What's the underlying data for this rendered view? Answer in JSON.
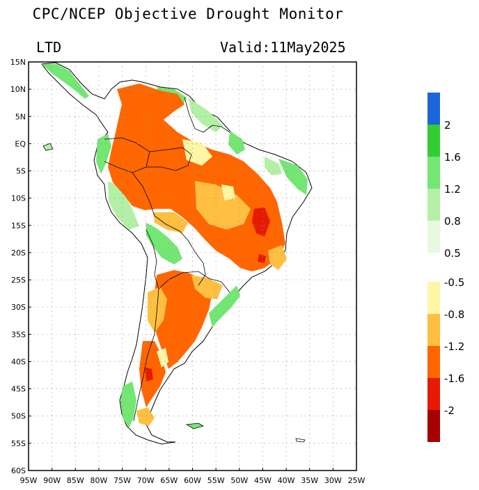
{
  "header": {
    "title": "CPC/NCEP Objective Drought Monitor",
    "index_label": "LTD",
    "valid_label": "Valid:11May2025"
  },
  "map": {
    "lon_labels": [
      "95W",
      "90W",
      "85W",
      "80W",
      "75W",
      "70W",
      "65W",
      "60W",
      "55W",
      "50W",
      "45W",
      "40W",
      "35W",
      "30W",
      "25W"
    ],
    "lat_labels": [
      "15N",
      "10N",
      "5N",
      "EQ",
      "5S",
      "10S",
      "15S",
      "20S",
      "25S",
      "30S",
      "35S",
      "40S",
      "45S",
      "50S",
      "55S",
      "60S"
    ],
    "lon_range": [
      -95,
      -25
    ],
    "lat_range": [
      -60,
      15
    ],
    "grid": true,
    "region": "South America"
  },
  "legend": {
    "wet_labels": [
      "2",
      "1.6",
      "1.2",
      "0.8",
      "0.5"
    ],
    "dry_labels": [
      "-0.5",
      "-0.8",
      "-1.2",
      "-1.6",
      "-2"
    ],
    "wet_colors": [
      "#1a66d9",
      "#33cc33",
      "#73e673",
      "#b3f0a6",
      "#e6fae0"
    ],
    "dry_colors": [
      "#fff5a6",
      "#ffbf40",
      "#ff6600",
      "#e61a00",
      "#a60000"
    ]
  }
}
